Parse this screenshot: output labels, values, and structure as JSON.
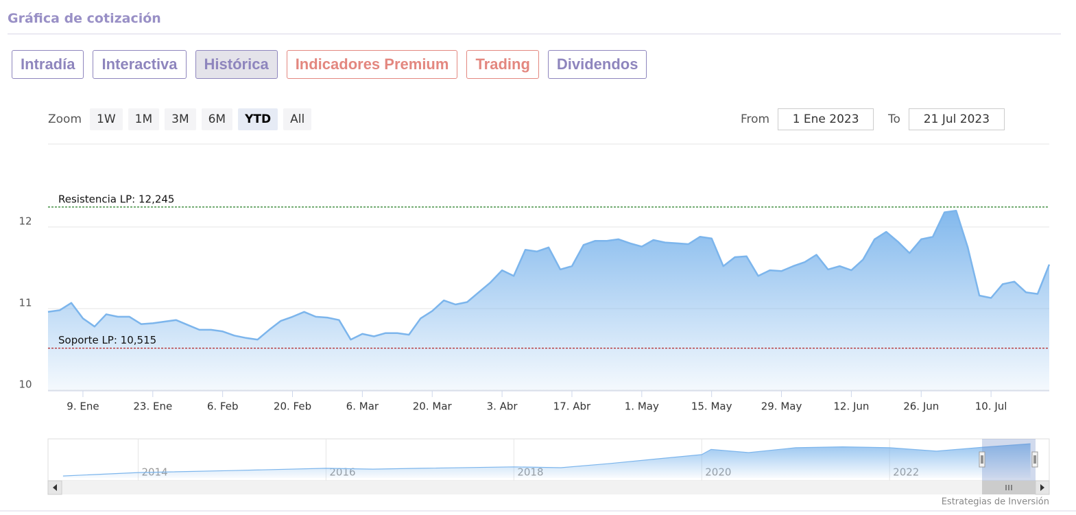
{
  "header": {
    "title": "Gráfica de cotización"
  },
  "tabs": [
    {
      "label": "Intradía",
      "color": "#8e85bd",
      "active": false
    },
    {
      "label": "Interactiva",
      "color": "#8e85bd",
      "active": false
    },
    {
      "label": "Histórica",
      "color": "#8e85bd",
      "active": true
    },
    {
      "label": "Indicadores Premium",
      "color": "#e3877f",
      "active": false
    },
    {
      "label": "Trading",
      "color": "#e3877f",
      "active": false
    },
    {
      "label": "Dividendos",
      "color": "#8e85bd",
      "active": false
    }
  ],
  "zoom": {
    "label": "Zoom",
    "buttons": [
      "1W",
      "1M",
      "3M",
      "6M",
      "YTD",
      "All"
    ],
    "active": "YTD"
  },
  "range": {
    "from_label": "From",
    "from": "1 Ene 2023",
    "to_label": "To",
    "to": "21 Jul 2023"
  },
  "chart_data": {
    "type": "area",
    "categories": [
      null,
      null,
      null,
      "9. Ene",
      null,
      null,
      null,
      null,
      null,
      "23. Ene",
      null,
      null,
      null,
      null,
      null,
      "6. Feb",
      null,
      null,
      null,
      null,
      null,
      "20. Feb",
      null,
      null,
      null,
      null,
      null,
      "6. Mar",
      null,
      null,
      null,
      null,
      null,
      "20. Mar",
      null,
      null,
      null,
      null,
      null,
      "3. Abr",
      null,
      null,
      null,
      null,
      null,
      "17. Abr",
      null,
      null,
      null,
      null,
      null,
      "1. May",
      null,
      null,
      null,
      null,
      null,
      "15. May",
      null,
      null,
      null,
      null,
      null,
      "29. May",
      null,
      null,
      null,
      null,
      null,
      "12. Jun",
      null,
      null,
      null,
      null,
      null,
      "26. Jun",
      null,
      null,
      null,
      null,
      null,
      "10. Jul",
      null,
      null,
      null,
      null,
      null
    ],
    "series": [
      {
        "color": "#7cb5ec",
        "values": [
          10.96,
          10.98,
          11.07,
          10.88,
          10.78,
          10.93,
          10.9,
          10.9,
          10.81,
          10.82,
          10.84,
          10.86,
          10.8,
          10.74,
          10.74,
          10.72,
          10.67,
          10.64,
          10.62,
          10.74,
          10.85,
          10.9,
          10.96,
          10.9,
          10.89,
          10.86,
          10.62,
          10.69,
          10.66,
          10.7,
          10.7,
          10.68,
          10.88,
          10.97,
          11.1,
          11.05,
          11.08,
          11.2,
          11.32,
          11.47,
          11.4,
          11.72,
          11.7,
          11.75,
          11.48,
          11.52,
          11.78,
          11.83,
          11.83,
          11.85,
          11.8,
          11.76,
          11.84,
          11.81,
          11.8,
          11.79,
          11.88,
          11.86,
          11.52,
          11.63,
          11.64,
          11.4,
          11.47,
          11.46,
          11.52,
          11.57,
          11.66,
          11.48,
          11.52,
          11.47,
          11.6,
          11.85,
          11.94,
          11.82,
          11.68,
          11.85,
          11.88,
          12.18,
          12.2,
          11.75,
          11.16,
          11.13,
          11.3,
          11.33,
          11.2,
          11.18,
          11.54
        ]
      }
    ],
    "ylim": [
      10,
      13
    ],
    "yticks": [
      10,
      11,
      12
    ],
    "grid": true,
    "annotations": [
      {
        "label": "Resistencia LP: 12,245",
        "value": 12.245,
        "color": "#1f7a1f"
      },
      {
        "label": "Soporte LP: 10,515",
        "value": 10.515,
        "color": "#b22222"
      }
    ]
  },
  "navigator": {
    "x": [
      2013.2,
      2014,
      2015,
      2016,
      2016.5,
      2017,
      2018,
      2018.5,
      2019,
      2019.5,
      2020,
      2020.1,
      2020.5,
      2021,
      2021.5,
      2022,
      2022.5,
      2023,
      2023.5
    ],
    "values": [
      0.7,
      1.9,
      2.6,
      3.4,
      3.1,
      3.4,
      3.9,
      3.6,
      5.0,
      6.6,
      8.2,
      10.0,
      8.9,
      10.6,
      10.9,
      10.6,
      9.4,
      10.8,
      12.0
    ],
    "xlim": [
      2013.04,
      2023.7
    ],
    "ylim": [
      0,
      13.7
    ],
    "xticks": [
      2014,
      2016,
      2018,
      2020,
      2022
    ]
  },
  "credit": "Estrategias de Inversión"
}
